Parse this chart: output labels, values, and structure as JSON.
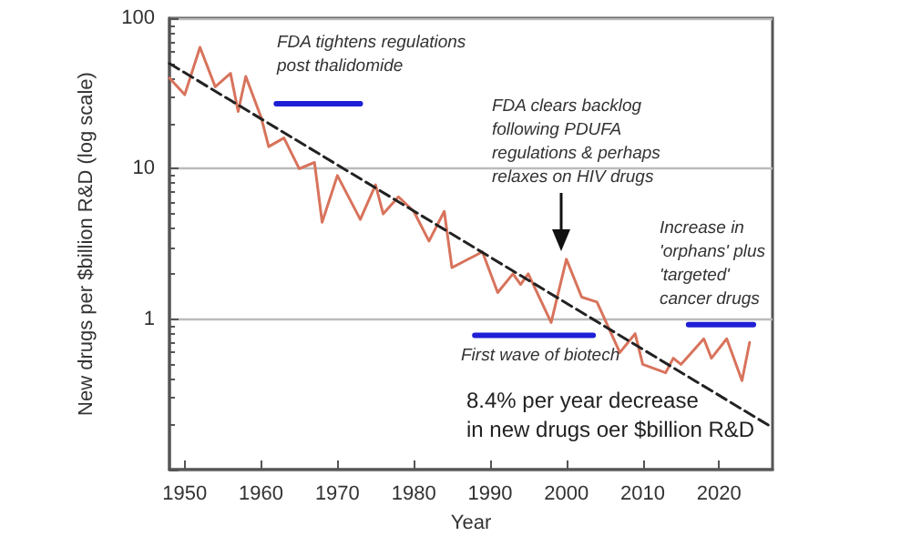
{
  "chart_data": {
    "type": "line",
    "xlabel": "Year",
    "ylabel": "New drugs per $billion R&D (log scale)",
    "log": "y",
    "grid": "y",
    "marker": "none",
    "xlim": [
      1948,
      2027
    ],
    "xticks": [
      1950,
      1960,
      1970,
      1980,
      1990,
      2000,
      2010,
      2020
    ],
    "ylim": [
      0.1,
      100
    ],
    "yticks": [
      {
        "value": 0.1,
        "label": null
      },
      1,
      10,
      100
    ],
    "series": [
      {
        "color": "#d8735c",
        "line_style": "solid",
        "x": [
          1948,
          1950,
          1952,
          1954,
          1956,
          1957,
          1958,
          1960,
          1961,
          1963,
          1965,
          1967,
          1968,
          1970,
          1973,
          1975,
          1976,
          1978,
          1980,
          1982,
          1984,
          1985,
          1989,
          1991,
          1993,
          1994,
          1995,
          1998,
          2000,
          2002,
          2004,
          2007,
          2009,
          2010,
          2013,
          2014,
          2015,
          2018,
          2019,
          2021,
          2023,
          2024
        ],
        "values": [
          40,
          31,
          64,
          35,
          43,
          24,
          41,
          22,
          14,
          16,
          10,
          11,
          4.4,
          9,
          4.6,
          7.8,
          5,
          6.5,
          5.2,
          3.3,
          5.2,
          2.2,
          2.8,
          1.5,
          2.0,
          1.7,
          2.0,
          0.95,
          2.5,
          1.4,
          1.3,
          0.6,
          0.8,
          0.5,
          0.44,
          0.55,
          0.5,
          0.74,
          0.55,
          0.74,
          0.39,
          0.7
        ]
      },
      {
        "color": "#222222",
        "line_style": "dashed",
        "x": [
          1948,
          2027
        ],
        "values": [
          50,
          0.19
        ]
      },
      {
        "color": "#1f1fd6",
        "line_style": "solid",
        "x": [
          1962,
          1973
        ],
        "values": [
          27,
          27
        ]
      },
      {
        "color": "#1f1fd6",
        "line_style": "solid",
        "x": [
          1988,
          2003.5
        ],
        "values": [
          0.78,
          0.78
        ]
      },
      {
        "color": "#1f1fd6",
        "line_style": "solid",
        "x": [
          2016,
          2024.5
        ],
        "values": [
          0.92,
          0.92
        ]
      }
    ],
    "annotations": [
      "FDA tightens regulations\npost thalidomide",
      "FDA clears backlog\nfollowing PDUFA\nregulations & perhaps\nrelaxes on HIV drugs",
      "Increase in\n'orphans' plus\n'targeted'\ncancer drugs",
      "First wave of biotech",
      "8.4% per year decrease\nin new drugs oer $billion R&D"
    ]
  }
}
